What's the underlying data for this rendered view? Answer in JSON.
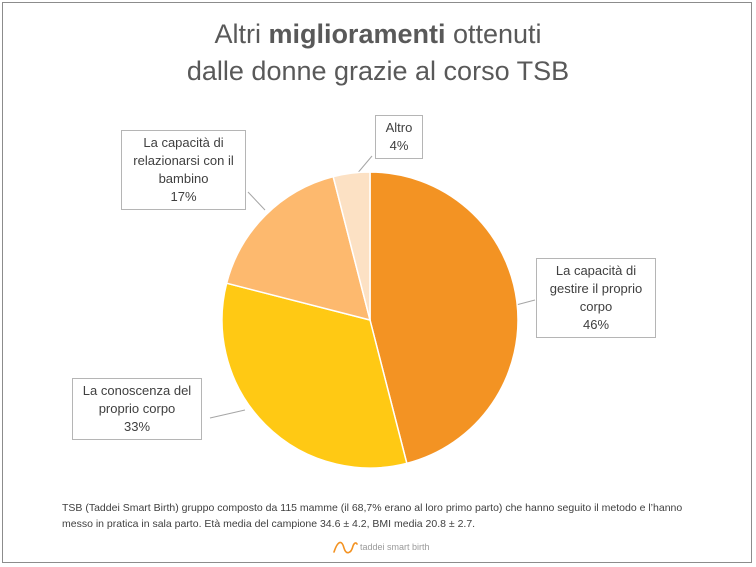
{
  "title": {
    "line1_pre": "Altri ",
    "line1_bold": "miglioramenti",
    "line1_post": " ottenuti",
    "line2": "dalle donne grazie al corso TSB"
  },
  "chart_data": {
    "type": "pie",
    "slices": [
      {
        "label": "La capacità di gestire il proprio corpo",
        "value": 46,
        "percent_label": "46%",
        "color": "#F39323"
      },
      {
        "label": "La conoscenza del proprio  corpo",
        "value": 33,
        "percent_label": "33%",
        "color": "#FFC914"
      },
      {
        "label": "La capacità di relazionarsi con il bambino",
        "value": 17,
        "percent_label": "17%",
        "color": "#FDB96E"
      },
      {
        "label": "Altro",
        "value": 4,
        "percent_label": "4%",
        "color": "#FCE1C4"
      }
    ],
    "slice_stroke": "#ffffff"
  },
  "callouts": {
    "gestire": {
      "lines": [
        "La capacità di",
        "gestire il proprio",
        "corpo",
        "46%"
      ]
    },
    "conoscenza": {
      "lines": [
        "La conoscenza del",
        "proprio  corpo",
        "33%"
      ]
    },
    "relazionarsi": {
      "lines": [
        "La capacità di",
        "relazionarsi con il",
        "bambino",
        "17%"
      ]
    },
    "altro": {
      "lines": [
        "Altro",
        "4%"
      ]
    }
  },
  "footnote": {
    "line1": "TSB (Taddei Smart Birth) gruppo composto da 115 mamme (il 68,7% erano al loro primo parto) che hanno seguito il metodo e l’hanno",
    "line2": "messo in pratica in sala parto. Età media del campione 34.6 ± 4.2, BMI media 20.8 ± 2.7."
  },
  "logo": {
    "text": "taddei smart birth",
    "color": "#F39323"
  },
  "colors": {
    "title": "#595959",
    "border": "#8c8c8c",
    "leader": "#a6a6a6"
  }
}
